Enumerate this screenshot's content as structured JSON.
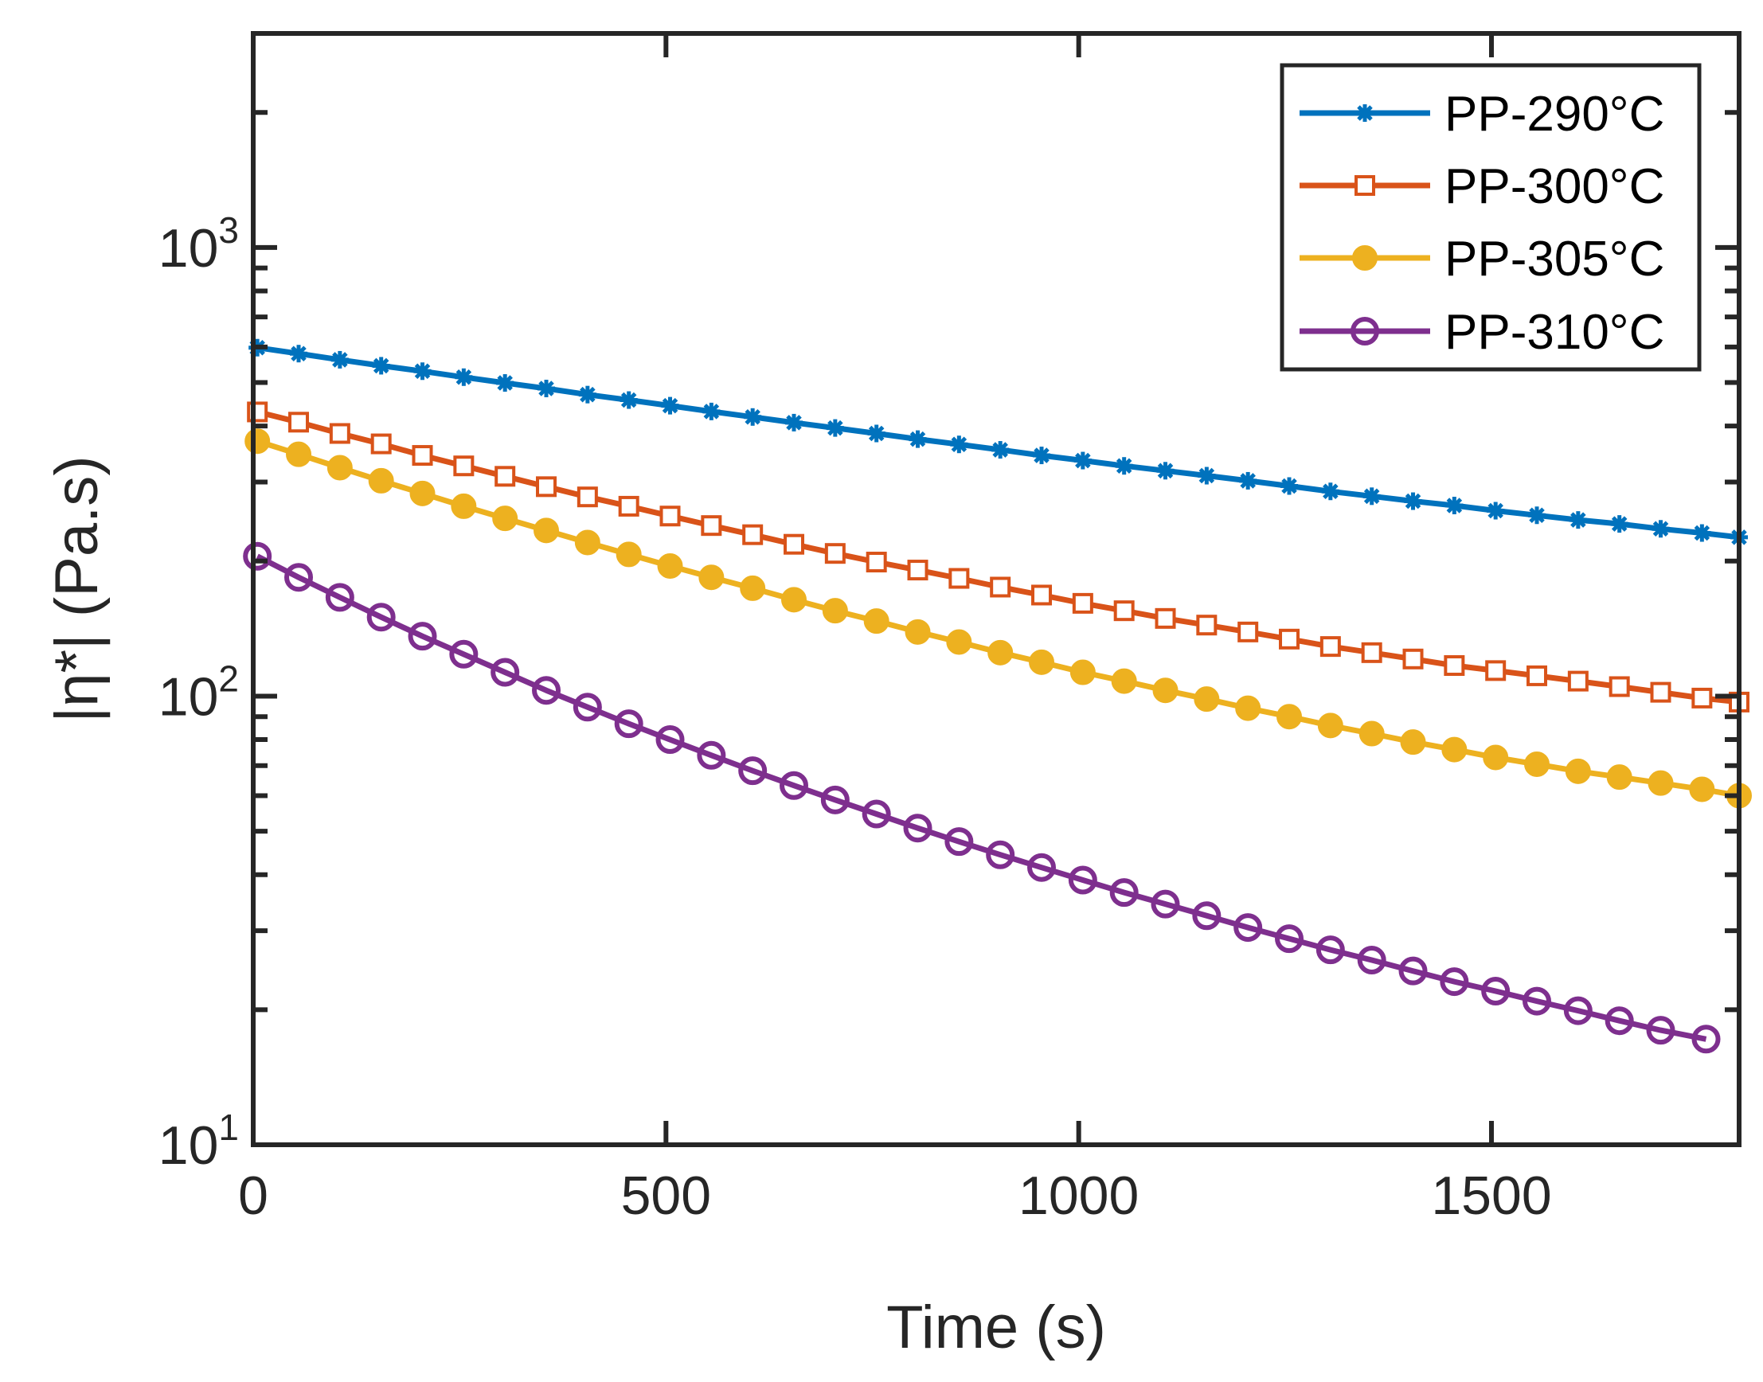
{
  "chart_data": {
    "type": "line",
    "xlabel": "Time (s)",
    "ylabel": "|η*| (Pa.s)",
    "xlim": [
      0,
      1800
    ],
    "ylim": [
      10,
      3000
    ],
    "yscale": "log",
    "x_ticks": [
      0,
      500,
      1000,
      1500
    ],
    "y_ticks": [
      {
        "value": 10,
        "base": "10",
        "exp": "1"
      },
      {
        "value": 100,
        "base": "10",
        "exp": "2"
      },
      {
        "value": 1000,
        "base": "10",
        "exp": "3"
      }
    ],
    "legend_position": "top-right",
    "series": [
      {
        "name": "PP-290°C",
        "color": "#0072BD",
        "marker": "star",
        "x": [
          5,
          55,
          105,
          155,
          205,
          255,
          305,
          355,
          405,
          455,
          505,
          555,
          605,
          655,
          705,
          755,
          805,
          855,
          905,
          955,
          1005,
          1055,
          1105,
          1155,
          1205,
          1255,
          1305,
          1355,
          1405,
          1455,
          1505,
          1555,
          1605,
          1655,
          1705,
          1755,
          1800
        ],
        "y": [
          598,
          580,
          562,
          545,
          530,
          514,
          499,
          485,
          470,
          457,
          444,
          431,
          419,
          407,
          396,
          385,
          374,
          364,
          354,
          344,
          335,
          326,
          318,
          310,
          302,
          294,
          286,
          279,
          272,
          266,
          259,
          253,
          247,
          242,
          236,
          231,
          226
        ]
      },
      {
        "name": "PP-300°C",
        "color": "#D95319",
        "marker": "square",
        "x": [
          5,
          55,
          105,
          155,
          205,
          255,
          305,
          355,
          405,
          455,
          505,
          555,
          605,
          655,
          705,
          755,
          805,
          855,
          905,
          955,
          1005,
          1055,
          1105,
          1155,
          1205,
          1255,
          1305,
          1355,
          1405,
          1455,
          1505,
          1555,
          1605,
          1655,
          1705,
          1755,
          1800
        ],
        "y": [
          430,
          408,
          385,
          365,
          344,
          326,
          309,
          293,
          278,
          265,
          252,
          240,
          229,
          218,
          208,
          199,
          191,
          183,
          175,
          168,
          161,
          155,
          149,
          144,
          139,
          134,
          129,
          125,
          121,
          117,
          114,
          111,
          108,
          105,
          102,
          99,
          97
        ]
      },
      {
        "name": "PP-305°C",
        "color": "#EDB120",
        "marker": "filled-circle",
        "x": [
          5,
          55,
          105,
          155,
          205,
          255,
          305,
          355,
          405,
          455,
          505,
          555,
          605,
          655,
          705,
          755,
          805,
          855,
          905,
          955,
          1005,
          1055,
          1105,
          1155,
          1205,
          1255,
          1305,
          1355,
          1405,
          1455,
          1505,
          1555,
          1605,
          1655,
          1705,
          1755,
          1800
        ],
        "y": [
          370,
          346,
          323,
          302,
          283,
          265,
          249,
          234,
          220,
          207,
          195,
          184,
          174,
          164,
          155,
          147,
          139,
          132,
          125,
          119,
          113,
          108,
          103,
          98.5,
          94,
          90,
          86,
          82.5,
          79,
          76,
          73,
          70.5,
          68,
          66,
          64,
          62,
          60
        ]
      },
      {
        "name": "PP-310°C",
        "color": "#7E2F8E",
        "marker": "open-circle",
        "x": [
          5,
          55,
          105,
          155,
          205,
          255,
          305,
          355,
          405,
          455,
          505,
          555,
          605,
          655,
          705,
          755,
          805,
          855,
          905,
          955,
          1005,
          1055,
          1105,
          1155,
          1205,
          1255,
          1305,
          1355,
          1405,
          1455,
          1505,
          1555,
          1605,
          1655,
          1705,
          1760
        ],
        "y": [
          205,
          184,
          166,
          150,
          136,
          124,
          113,
          103,
          94.5,
          86.8,
          80,
          73.8,
          68.2,
          63.2,
          58.7,
          54.6,
          50.8,
          47.4,
          44.3,
          41.5,
          38.9,
          36.5,
          34.4,
          32.4,
          30.5,
          28.8,
          27.2,
          25.8,
          24.4,
          23.1,
          22,
          20.9,
          19.9,
          18.9,
          18,
          17.2
        ]
      }
    ]
  }
}
